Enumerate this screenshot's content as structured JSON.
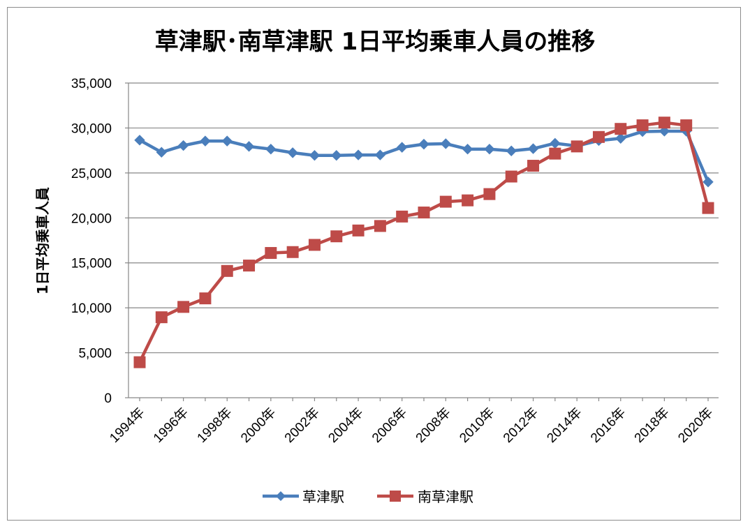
{
  "chart_data": {
    "type": "line",
    "title": "草津駅･南草津駅 1日平均乗車人員の推移",
    "ylabel": "1日平均乗車人員",
    "xlabel": "",
    "ylim": [
      0,
      35000
    ],
    "yticks": [
      "0",
      "5,000",
      "10,000",
      "15,000",
      "20,000",
      "25,000",
      "30,000",
      "35,000"
    ],
    "ytick_values": [
      0,
      5000,
      10000,
      15000,
      20000,
      25000,
      30000,
      35000
    ],
    "x": [
      1994,
      1995,
      1996,
      1997,
      1998,
      1999,
      2000,
      2001,
      2002,
      2003,
      2004,
      2005,
      2006,
      2007,
      2008,
      2009,
      2010,
      2011,
      2012,
      2013,
      2014,
      2015,
      2016,
      2017,
      2018,
      2019,
      2020
    ],
    "xtick_labels": [
      "1994年",
      "1996年",
      "1998年",
      "2000年",
      "2002年",
      "2004年",
      "2006年",
      "2008年",
      "2010年",
      "2012年",
      "2014年",
      "2016年",
      "2018年",
      "2020年"
    ],
    "xtick_years": [
      1994,
      1996,
      1998,
      2000,
      2002,
      2004,
      2006,
      2008,
      2010,
      2012,
      2014,
      2016,
      2018,
      2020
    ],
    "grid": true,
    "legend_position": "bottom",
    "series": [
      {
        "name": "草津駅",
        "color": "#4a7ebb",
        "marker": "diamond",
        "values": [
          28650,
          27300,
          28050,
          28550,
          28550,
          27950,
          27650,
          27250,
          26950,
          26950,
          27000,
          27000,
          27850,
          28200,
          28250,
          27650,
          27650,
          27450,
          27700,
          28300,
          28000,
          28600,
          28850,
          29600,
          29650,
          29650,
          24000
        ]
      },
      {
        "name": "南草津駅",
        "color": "#be4b48",
        "marker": "square",
        "values": [
          3950,
          8950,
          10100,
          11050,
          14100,
          14700,
          16100,
          16200,
          17000,
          17950,
          18600,
          19100,
          20150,
          20600,
          21800,
          21950,
          22650,
          24600,
          25800,
          27150,
          27950,
          29000,
          29900,
          30300,
          30600,
          30300,
          21100
        ]
      }
    ]
  }
}
